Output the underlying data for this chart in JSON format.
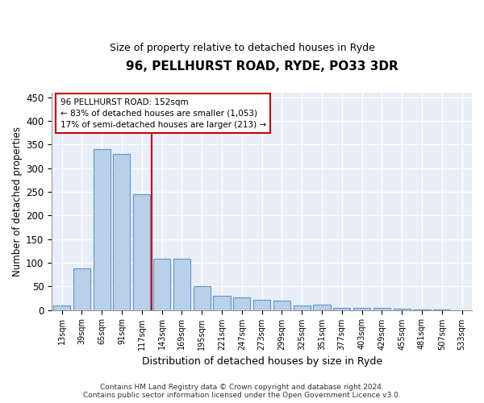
{
  "title": "96, PELLHURST ROAD, RYDE, PO33 3DR",
  "subtitle": "Size of property relative to detached houses in Ryde",
  "xlabel": "Distribution of detached houses by size in Ryde",
  "ylabel": "Number of detached properties",
  "bar_color": "#b8d0e8",
  "bar_edge_color": "#6699cc",
  "background_color": "#e8eef8",
  "grid_color": "#ffffff",
  "categories": [
    "13sqm",
    "39sqm",
    "65sqm",
    "91sqm",
    "117sqm",
    "143sqm",
    "169sqm",
    "195sqm",
    "221sqm",
    "247sqm",
    "273sqm",
    "299sqm",
    "325sqm",
    "351sqm",
    "377sqm",
    "403sqm",
    "429sqm",
    "455sqm",
    "481sqm",
    "507sqm",
    "533sqm"
  ],
  "values": [
    10,
    88,
    340,
    330,
    245,
    108,
    108,
    50,
    30,
    27,
    22,
    20,
    10,
    12,
    5,
    5,
    5,
    2,
    1,
    1,
    0
  ],
  "property_label": "96 PELLHURST ROAD: 152sqm",
  "annotation_line1": "← 83% of detached houses are smaller (1,053)",
  "annotation_line2": "17% of semi-detached houses are larger (213) →",
  "vline_x": 1.42,
  "ylim": [
    0,
    460
  ],
  "yticks": [
    0,
    50,
    100,
    150,
    200,
    250,
    300,
    350,
    400,
    450
  ],
  "footer_line1": "Contains HM Land Registry data © Crown copyright and database right 2024.",
  "footer_line2": "Contains public sector information licensed under the Open Government Licence v3.0.",
  "annotation_box_color": "#cc0000",
  "vline_color": "#cc0000"
}
